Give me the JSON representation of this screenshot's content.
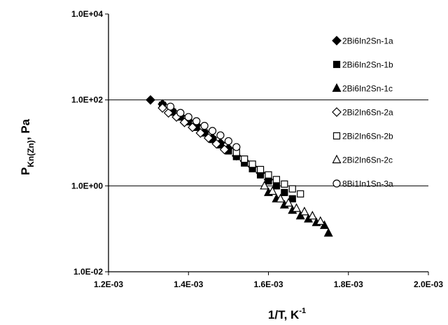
{
  "chart_data": {
    "type": "scatter",
    "title": "",
    "xlabel": "1/T, K",
    "xlabel_superscript": "-1",
    "ylabel_main": "P",
    "ylabel_subscript": "Kn(Zn)",
    "ylabel_suffix": ", Pa",
    "xlim": [
      0.0012,
      0.002
    ],
    "ylim": [
      0.01,
      10000
    ],
    "y_scale": "log",
    "grid": "horizontal major lines",
    "legend_position": "right",
    "x_ticks": [
      {
        "value": 0.0012,
        "label": "1.2E-03"
      },
      {
        "value": 0.0014,
        "label": "1.4E-03"
      },
      {
        "value": 0.0016,
        "label": "1.6E-03"
      },
      {
        "value": 0.0018,
        "label": "1.8E-03"
      },
      {
        "value": 0.002,
        "label": "2.0E-03"
      }
    ],
    "y_ticks": [
      {
        "value": 10000,
        "label": "1.0E+04"
      },
      {
        "value": 100,
        "label": "1.0E+02"
      },
      {
        "value": 1,
        "label": "1.0E+00"
      },
      {
        "value": 0.01,
        "label": "1.0E-02"
      }
    ],
    "series": [
      {
        "name": "2Bi6In2Sn-1a",
        "marker": "diamond",
        "filled": true,
        "x": [
          0.001305,
          0.001335,
          0.00136,
          0.00138,
          0.0014,
          0.00142,
          0.00144,
          0.00146,
          0.00148,
          0.0015,
          0.00152,
          0.00154,
          0.00156,
          0.00158,
          0.0016
        ],
        "y": [
          100,
          80,
          56,
          43,
          33,
          26,
          18,
          13,
          10,
          7.5,
          5,
          3.8,
          2.8,
          2.0,
          1.4
        ]
      },
      {
        "name": "2Bi6In2Sn-1b",
        "marker": "square",
        "filled": true,
        "x": [
          0.001335,
          0.00136,
          0.00138,
          0.0014,
          0.00142,
          0.00144,
          0.00146,
          0.00148,
          0.0015,
          0.00152,
          0.00154,
          0.00156,
          0.00158,
          0.0016,
          0.00162,
          0.00164,
          0.00166
        ],
        "y": [
          75,
          52,
          40,
          31,
          23,
          17,
          12,
          9,
          6.5,
          4.8,
          3.4,
          2.5,
          1.8,
          1.3,
          1.0,
          0.7,
          0.5
        ]
      },
      {
        "name": "2Bi6In2Sn-1c",
        "marker": "triangle",
        "filled": true,
        "x": [
          0.0016,
          0.00162,
          0.00164,
          0.00166,
          0.00168,
          0.0017,
          0.00172,
          0.00174,
          0.00175
        ],
        "y": [
          0.7,
          0.5,
          0.36,
          0.27,
          0.2,
          0.17,
          0.14,
          0.12,
          0.08
        ]
      },
      {
        "name": "2Bi2In6Sn-2a",
        "marker": "diamond",
        "filled": false,
        "x": [
          0.001335,
          0.00135,
          0.00137,
          0.00139,
          0.00141,
          0.00143,
          0.00145,
          0.00147,
          0.00149
        ],
        "y": [
          65,
          50,
          40,
          30,
          23,
          17,
          13,
          9.5,
          7
        ]
      },
      {
        "name": "2Bi2In6Sn-2b",
        "marker": "square",
        "filled": false,
        "x": [
          0.00152,
          0.00154,
          0.00156,
          0.00158,
          0.0016,
          0.00162,
          0.00164,
          0.00166,
          0.00168
        ],
        "y": [
          6,
          4.2,
          3.2,
          2.4,
          1.8,
          1.4,
          1.1,
          0.85,
          0.65
        ]
      },
      {
        "name": "2Bi2In6Sn-2c",
        "marker": "triangle",
        "filled": false,
        "x": [
          0.00159,
          0.00161,
          0.00163,
          0.00165,
          0.00167,
          0.00169,
          0.00171,
          0.00173
        ],
        "y": [
          1.0,
          0.75,
          0.5,
          0.4,
          0.3,
          0.25,
          0.2,
          0.15
        ]
      },
      {
        "name": "8Bi1In1Sn-3a",
        "marker": "circle",
        "filled": false,
        "x": [
          0.001355,
          0.00138,
          0.0014,
          0.00142,
          0.00144,
          0.00146,
          0.00148,
          0.0015,
          0.00152
        ],
        "y": [
          70,
          50,
          40,
          32,
          25,
          19,
          15,
          11,
          8
        ]
      }
    ]
  }
}
